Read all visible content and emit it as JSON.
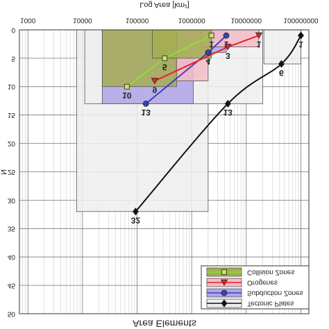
{
  "chart_data": {
    "type": "line",
    "title": "Area Elements",
    "xlabel": "Log Area [km²]",
    "ylabel": "N",
    "xscale": "log",
    "xlim": [
      700,
      140000000
    ],
    "ylim": [
      0,
      50
    ],
    "xticks": [
      1000,
      10000,
      100000,
      1000000,
      10000000,
      100000000
    ],
    "yticks": [
      0,
      5,
      10,
      15,
      20,
      25,
      30,
      35,
      40,
      45,
      50
    ],
    "grid": true,
    "legend": "upper right",
    "series": [
      {
        "name": "Tectonic Plates",
        "color": "#111111",
        "box_color": "#eeeeee",
        "marker": "diamond",
        "x": [
          100000000,
          44000000,
          4600000,
          94000
        ],
        "values": [
          1,
          6,
          13,
          32
        ],
        "ranges": [
          null,
          [
            21000000,
            100000000
          ],
          [
            11000,
            20000000
          ],
          [
            7800,
            2000000
          ]
        ]
      },
      {
        "name": "Subduction Zones",
        "color": "#3a44b0",
        "box_color": "#b0a4e8",
        "marker": "circle",
        "x": [
          4300000,
          2000000,
          145000
        ],
        "values": [
          1,
          4,
          13
        ],
        "ranges": [
          null,
          [
            530000,
            4300000
          ],
          [
            23000,
            1070000
          ]
        ]
      },
      {
        "name": "Orogenes",
        "color": "#e8202a",
        "box_color": "#f5bcc6",
        "marker": "triangle",
        "x": [
          17000000,
          4600000,
          210000
        ],
        "values": [
          1,
          3,
          9
        ],
        "ranges": [
          null,
          [
            1500000,
            17000000
          ],
          [
            500000,
            2000000
          ]
        ]
      },
      {
        "name": "Collision Zones",
        "color": "#8fdc3a",
        "box_color": "#a4ad52",
        "marker": "square",
        "x": [
          2300000,
          320000,
          65000
        ],
        "values": [
          1,
          5,
          10
        ],
        "ranges": [
          null,
          [
            190000,
            2300000
          ],
          [
            23000,
            530000
          ]
        ]
      }
    ]
  }
}
